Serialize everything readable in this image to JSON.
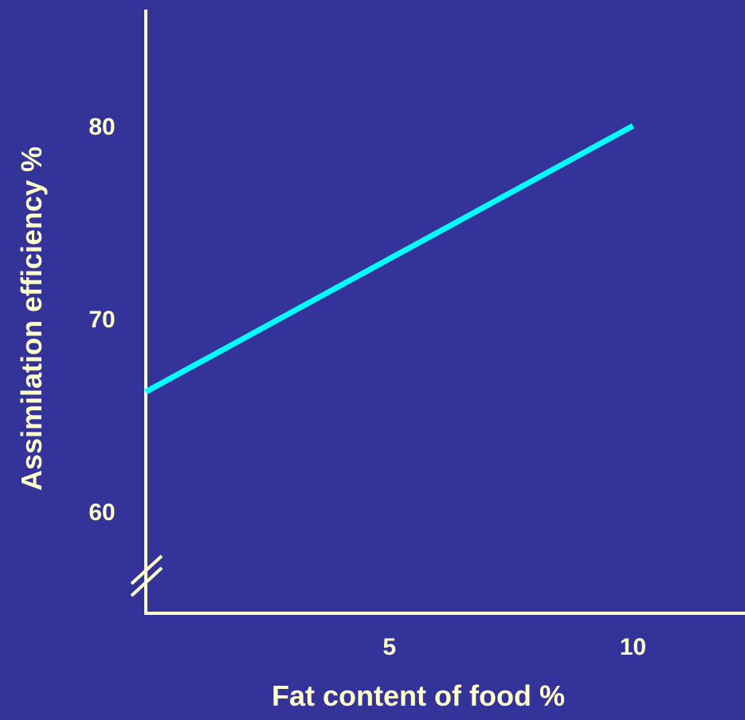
{
  "chart_data": {
    "type": "line",
    "title": "",
    "xlabel": "Fat content of food %",
    "ylabel": "Assimilation efficiency %",
    "xlim": [
      0,
      12.3
    ],
    "ylim": [
      55.5,
      85
    ],
    "x_axis_break": false,
    "y_axis_break": true,
    "grid": false,
    "legend": "none",
    "x_ticks": [
      {
        "value": 5,
        "label": "5"
      },
      {
        "value": 10,
        "label": "10"
      }
    ],
    "y_ticks": [
      {
        "value": 60,
        "label": "60"
      },
      {
        "value": 70,
        "label": "70"
      },
      {
        "value": 80,
        "label": "80"
      }
    ],
    "series": [
      {
        "name": "",
        "color": "#00FFFF",
        "x": [
          0,
          10
        ],
        "y": [
          66.2,
          80
        ]
      }
    ]
  },
  "colors": {
    "background": "#333399",
    "axis": "#FFFFCC",
    "text": "#FFFFCC",
    "line": "#00FFFF"
  }
}
